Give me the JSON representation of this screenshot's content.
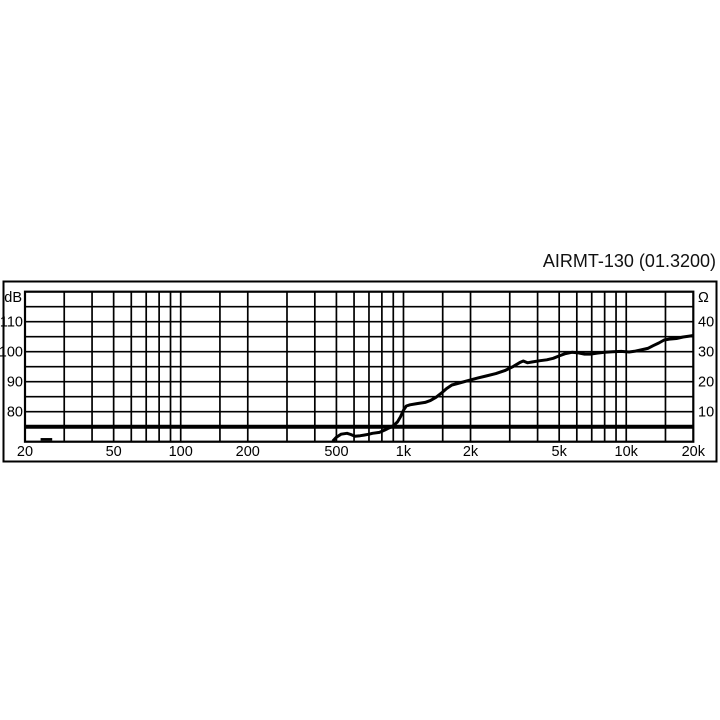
{
  "page": {
    "background": "#ffffff",
    "foreground": "#000000"
  },
  "chart_data": {
    "type": "line",
    "title": "AIRMT-130 (01.3200)",
    "grid": true,
    "legend": "none",
    "x_axis": {
      "scale": "log",
      "min": 20,
      "max": 20000,
      "unit": "Hz",
      "tick_labels": [
        {
          "label": "20",
          "value": 20
        },
        {
          "label": "50",
          "value": 50
        },
        {
          "label": "100",
          "value": 100
        },
        {
          "label": "200",
          "value": 200
        },
        {
          "label": "500",
          "value": 500
        },
        {
          "label": "1k",
          "value": 1000
        },
        {
          "label": "2k",
          "value": 2000
        },
        {
          "label": "5k",
          "value": 5000
        },
        {
          "label": "10k",
          "value": 10000
        },
        {
          "label": "20k",
          "value": 20000
        }
      ],
      "gridlines": [
        30,
        40,
        50,
        60,
        70,
        80,
        90,
        100,
        150,
        200,
        300,
        400,
        500,
        600,
        700,
        800,
        900,
        1000,
        1500,
        2000,
        3000,
        4000,
        5000,
        6000,
        7000,
        8000,
        9000,
        10000,
        15000
      ]
    },
    "left_axis": {
      "label": "dB",
      "min": 70,
      "max": 120,
      "gridline_step": 5,
      "tick_labels": [
        {
          "label": "110",
          "value": 110
        },
        {
          "label": "100",
          "value": 100
        },
        {
          "label": "90",
          "value": 90
        },
        {
          "label": "80",
          "value": 80
        }
      ]
    },
    "right_axis": {
      "label": "Ω",
      "min": 0,
      "max": 50,
      "tick_labels": [
        {
          "label": "40",
          "value": 40
        },
        {
          "label": "30",
          "value": 30
        },
        {
          "label": "20",
          "value": 20
        },
        {
          "label": "10",
          "value": 10
        }
      ]
    },
    "series": [
      {
        "name": "spl-frequency-response",
        "axis": "left",
        "unit": "dB",
        "color": "#000000",
        "width": 3,
        "points": [
          [
            481,
            70.2
          ],
          [
            500,
            71.5
          ],
          [
            524,
            72.5
          ],
          [
            558,
            72.8
          ],
          [
            580,
            72.4
          ],
          [
            605,
            71.8
          ],
          [
            640,
            72.0
          ],
          [
            665,
            72.2
          ],
          [
            700,
            72.5
          ],
          [
            726,
            72.8
          ],
          [
            780,
            73.1
          ],
          [
            820,
            73.8
          ],
          [
            850,
            74.4
          ],
          [
            880,
            74.9
          ],
          [
            910,
            75.6
          ],
          [
            940,
            76.6
          ],
          [
            970,
            78.3
          ],
          [
            1000,
            80.5
          ],
          [
            1030,
            81.9
          ],
          [
            1070,
            82.3
          ],
          [
            1150,
            82.7
          ],
          [
            1250,
            83.1
          ],
          [
            1320,
            83.7
          ],
          [
            1400,
            84.8
          ],
          [
            1480,
            86.2
          ],
          [
            1560,
            87.7
          ],
          [
            1650,
            88.9
          ],
          [
            1750,
            89.4
          ],
          [
            1850,
            89.9
          ],
          [
            2000,
            90.6
          ],
          [
            2150,
            91.2
          ],
          [
            2350,
            91.9
          ],
          [
            2600,
            92.7
          ],
          [
            2850,
            93.7
          ],
          [
            3100,
            95.0
          ],
          [
            3350,
            96.5
          ],
          [
            3450,
            96.9
          ],
          [
            3600,
            96.3
          ],
          [
            3800,
            96.6
          ],
          [
            4100,
            97.0
          ],
          [
            4400,
            97.3
          ],
          [
            4700,
            97.8
          ],
          [
            5000,
            98.6
          ],
          [
            5300,
            99.3
          ],
          [
            5700,
            99.8
          ],
          [
            6100,
            99.6
          ],
          [
            6500,
            99.2
          ],
          [
            6900,
            99.2
          ],
          [
            7400,
            99.5
          ],
          [
            8000,
            99.8
          ],
          [
            8700,
            100.0
          ],
          [
            9500,
            100.1
          ],
          [
            10300,
            99.9
          ],
          [
            11000,
            100.2
          ],
          [
            11800,
            100.7
          ],
          [
            12500,
            101.1
          ],
          [
            13200,
            102.0
          ],
          [
            14000,
            102.9
          ],
          [
            14800,
            103.9
          ],
          [
            15600,
            104.2
          ],
          [
            16800,
            104.4
          ],
          [
            18000,
            104.9
          ],
          [
            19200,
            105.2
          ],
          [
            20000,
            105.4
          ]
        ]
      },
      {
        "name": "impedance-curve",
        "axis": "right",
        "unit": "ohm",
        "color": "#000000",
        "width": 4,
        "points": [
          [
            20,
            5
          ],
          [
            20000,
            5
          ]
        ]
      },
      {
        "name": "low-frequency-mark",
        "axis": "right",
        "unit": "ohm",
        "color": "#000000",
        "width": 2.5,
        "points": [
          [
            23.5,
            0.8
          ],
          [
            26.5,
            0.8
          ]
        ]
      }
    ]
  }
}
